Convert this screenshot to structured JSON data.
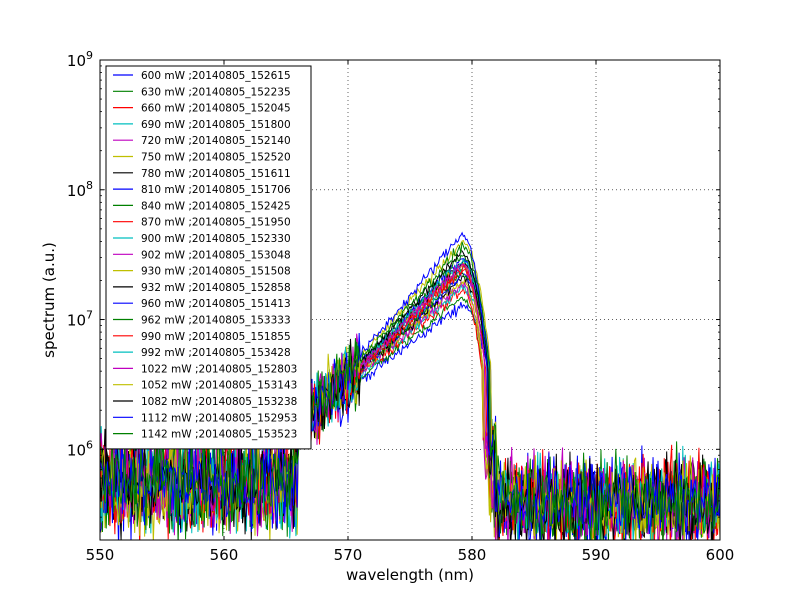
{
  "chart_data": {
    "type": "line",
    "xlabel": "wavelength (nm)",
    "ylabel": "spectrum (a.u.)",
    "xlim": [
      550,
      600
    ],
    "ylim": [
      200000,
      1000000000
    ],
    "yscale": "log",
    "grid": true,
    "legend_position": "top-left",
    "x_ticks": [
      550,
      560,
      570,
      580,
      590,
      600
    ],
    "x_tick_labels": [
      "550",
      "560",
      "570",
      "580",
      "590",
      "600"
    ],
    "y_ticks": [
      1000000,
      10000000,
      100000000,
      1000000000
    ],
    "y_tick_labels": [
      {
        "base": "10",
        "exp": "6"
      },
      {
        "base": "10",
        "exp": "7"
      },
      {
        "base": "10",
        "exp": "8"
      },
      {
        "base": "10",
        "exp": "9"
      }
    ],
    "series": [
      {
        "name": "600 mW ;20140805_152615",
        "color": "#0000ff",
        "peak": 13000000
      },
      {
        "name": "630 mW ;20140805_152235",
        "color": "#008000",
        "peak": 15000000
      },
      {
        "name": "660 mW ;20140805_152045",
        "color": "#ff0000",
        "peak": 17000000
      },
      {
        "name": "690 mW ;20140805_151800",
        "color": "#00bfbf",
        "peak": 18000000
      },
      {
        "name": "720 mW ;20140805_152140",
        "color": "#bf00bf",
        "peak": 19000000
      },
      {
        "name": "750 mW ;20140805_152520",
        "color": "#bfbf00",
        "peak": 20000000
      },
      {
        "name": "780 mW ;20140805_151611",
        "color": "#000000",
        "peak": 21000000
      },
      {
        "name": "810 mW ;20140805_151706",
        "color": "#0000ff",
        "peak": 22000000
      },
      {
        "name": "840 mW ;20140805_152425",
        "color": "#008000",
        "peak": 23000000
      },
      {
        "name": "870 mW ;20140805_151950",
        "color": "#ff0000",
        "peak": 24000000
      },
      {
        "name": "900 mW ;20140805_152330",
        "color": "#00bfbf",
        "peak": 25000000
      },
      {
        "name": "902 mW ;20140805_153048",
        "color": "#bf00bf",
        "peak": 26000000
      },
      {
        "name": "930 mW ;20140805_151508",
        "color": "#bfbf00",
        "peak": 27000000
      },
      {
        "name": "932 mW ;20140805_152858",
        "color": "#000000",
        "peak": 28000000
      },
      {
        "name": "960 mW ;20140805_151413",
        "color": "#0000ff",
        "peak": 30000000
      },
      {
        "name": "962 mW ;20140805_153333",
        "color": "#008000",
        "peak": 31000000
      },
      {
        "name": "990 mW ;20140805_151855",
        "color": "#ff0000",
        "peak": 25000000
      },
      {
        "name": "992 mW ;20140805_153428",
        "color": "#00bfbf",
        "peak": 29000000
      },
      {
        "name": "1022 mW ;20140805_152803",
        "color": "#bf00bf",
        "peak": 27000000
      },
      {
        "name": "1052 mW ;20140805_153143",
        "color": "#bfbf00",
        "peak": 40000000
      },
      {
        "name": "1082 mW ;20140805_153238",
        "color": "#000000",
        "peak": 33000000
      },
      {
        "name": "1112 mW ;20140805_152953",
        "color": "#0000ff",
        "peak": 46000000
      },
      {
        "name": "1142 mW ;20140805_153523",
        "color": "#008000",
        "peak": 37000000
      }
    ]
  }
}
